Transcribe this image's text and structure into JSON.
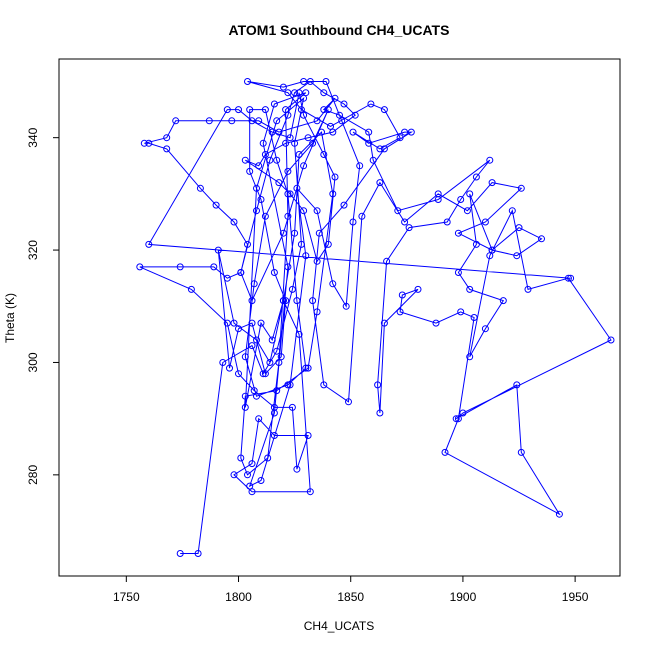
{
  "chart_data": {
    "type": "line",
    "title": "ATOM1 Southbound CH4_UCATS",
    "xlabel": "CH4_UCATS",
    "ylabel": "Theta (K)",
    "xlim": [
      1720,
      1970
    ],
    "ylim": [
      262,
      354
    ],
    "xticks": [
      "1750",
      "1800",
      "1850",
      "1900",
      "1950"
    ],
    "yticks": [
      "280",
      "300",
      "320",
      "340"
    ],
    "line_color": "#0000ff",
    "marker": "open-circle",
    "series": [
      {
        "points": [
          [
            1774,
            266
          ],
          [
            1782,
            266
          ],
          [
            1793,
            300
          ],
          [
            1806,
            303
          ],
          [
            1811,
            298
          ],
          [
            1817,
            302
          ],
          [
            1824,
            313
          ],
          [
            1828,
            321
          ],
          [
            1825,
            339
          ],
          [
            1829,
            347
          ],
          [
            1817,
            343
          ],
          [
            1808,
            331
          ],
          [
            1803,
            292
          ],
          [
            1810,
            307
          ],
          [
            1815,
            304
          ],
          [
            1820,
            311
          ],
          [
            1825,
            323
          ],
          [
            1827,
            337
          ],
          [
            1837,
            341
          ],
          [
            1842,
            330
          ],
          [
            1835,
            309
          ],
          [
            1831,
            299
          ],
          [
            1817,
            295
          ],
          [
            1803,
            294
          ],
          [
            1801,
            283
          ],
          [
            1804,
            280
          ],
          [
            1813,
            283
          ],
          [
            1818,
            300
          ],
          [
            1822,
            326
          ],
          [
            1821,
            345
          ],
          [
            1830,
            348
          ],
          [
            1816,
            346
          ],
          [
            1811,
            339
          ],
          [
            1822,
            317
          ],
          [
            1816,
            291
          ],
          [
            1805,
            278
          ],
          [
            1810,
            279
          ],
          [
            1823,
            296
          ],
          [
            1830,
            319
          ],
          [
            1826,
            331
          ],
          [
            1835,
            327
          ],
          [
            1842,
            314
          ],
          [
            1848,
            310
          ],
          [
            1851,
            325
          ],
          [
            1854,
            335
          ],
          [
            1846,
            343
          ],
          [
            1839,
            350
          ],
          [
            1829,
            350
          ],
          [
            1820,
            349
          ],
          [
            1804,
            350
          ],
          [
            1822,
            348
          ],
          [
            1828,
            345
          ],
          [
            1841,
            342
          ],
          [
            1859,
            346
          ],
          [
            1865,
            345
          ],
          [
            1872,
            340
          ],
          [
            1863,
            338
          ],
          [
            1851,
            341
          ],
          [
            1858,
            339
          ],
          [
            1874,
            341
          ],
          [
            1877,
            341
          ],
          [
            1865,
            338
          ],
          [
            1847,
            328
          ],
          [
            1836,
            323
          ],
          [
            1833,
            311
          ],
          [
            1838,
            296
          ],
          [
            1849,
            293
          ],
          [
            1855,
            326
          ],
          [
            1863,
            332
          ],
          [
            1874,
            325
          ],
          [
            1889,
            330
          ],
          [
            1902,
            327
          ],
          [
            1913,
            332
          ],
          [
            1926,
            331
          ],
          [
            1910,
            325
          ],
          [
            1898,
            323
          ],
          [
            1913,
            320
          ],
          [
            1924,
            319
          ],
          [
            1935,
            322
          ],
          [
            1925,
            324
          ],
          [
            1913,
            320
          ],
          [
            1903,
            330
          ],
          [
            1906,
            321
          ],
          [
            1898,
            316
          ],
          [
            1903,
            313
          ],
          [
            1918,
            311
          ],
          [
            1910,
            306
          ],
          [
            1903,
            301
          ],
          [
            1912,
            319
          ],
          [
            1922,
            327
          ],
          [
            1929,
            313
          ],
          [
            1947,
            315
          ],
          [
            1966,
            304
          ],
          [
            1900,
            291
          ],
          [
            1897,
            290
          ],
          [
            1924,
            296
          ],
          [
            1926,
            284
          ],
          [
            1943,
            273
          ],
          [
            1892,
            284
          ],
          [
            1898,
            290
          ],
          [
            1905,
            308
          ],
          [
            1899,
            309
          ],
          [
            1888,
            307
          ],
          [
            1872,
            309
          ],
          [
            1873,
            312
          ],
          [
            1880,
            313
          ],
          [
            1865,
            307
          ],
          [
            1863,
            291
          ],
          [
            1862,
            296
          ],
          [
            1866,
            318
          ],
          [
            1876,
            324
          ],
          [
            1893,
            325
          ],
          [
            1899,
            329
          ],
          [
            1906,
            333
          ],
          [
            1912,
            336
          ],
          [
            1889,
            329
          ],
          [
            1871,
            327
          ],
          [
            1860,
            336
          ],
          [
            1858,
            341
          ],
          [
            1845,
            344
          ],
          [
            1838,
            345
          ],
          [
            1843,
            347
          ],
          [
            1835,
            343
          ],
          [
            1818,
            341
          ],
          [
            1809,
            343
          ],
          [
            1797,
            343
          ],
          [
            1787,
            343
          ],
          [
            1772,
            343
          ],
          [
            1768,
            340
          ],
          [
            1758,
            339
          ],
          [
            1760,
            339
          ],
          [
            1768,
            338
          ],
          [
            1783,
            331
          ],
          [
            1790,
            328
          ],
          [
            1798,
            325
          ],
          [
            1804,
            321
          ],
          [
            1801,
            316
          ],
          [
            1795,
            315
          ],
          [
            1789,
            317
          ],
          [
            1774,
            317
          ],
          [
            1756,
            317
          ],
          [
            1779,
            313
          ],
          [
            1795,
            307
          ],
          [
            1800,
            298
          ],
          [
            1807,
            295
          ],
          [
            1816,
            292
          ],
          [
            1824,
            292
          ],
          [
            1826,
            281
          ],
          [
            1831,
            287
          ],
          [
            1816,
            287
          ],
          [
            1809,
            290
          ],
          [
            1806,
            282
          ],
          [
            1798,
            280
          ],
          [
            1806,
            277
          ],
          [
            1832,
            277
          ],
          [
            1827,
            305
          ],
          [
            1820,
            311
          ],
          [
            1814,
            300
          ],
          [
            1808,
            304
          ],
          [
            1798,
            307
          ],
          [
            1791,
            320
          ],
          [
            1796,
            299
          ],
          [
            1800,
            306
          ],
          [
            1806,
            307
          ],
          [
            1812,
            298
          ],
          [
            1819,
            301
          ],
          [
            1821,
            311
          ],
          [
            1816,
            316
          ],
          [
            1810,
            329
          ],
          [
            1805,
            334
          ],
          [
            1805,
            345
          ],
          [
            1812,
            345
          ],
          [
            1817,
            336
          ],
          [
            1822,
            330
          ],
          [
            1826,
            311
          ],
          [
            1830,
            299
          ],
          [
            1822,
            296
          ],
          [
            1808,
            294
          ],
          [
            1803,
            301
          ],
          [
            1807,
            314
          ],
          [
            1812,
            326
          ],
          [
            1822,
            334
          ],
          [
            1833,
            339
          ],
          [
            1840,
            345
          ],
          [
            1829,
            335
          ],
          [
            1820,
            323
          ],
          [
            1806,
            311
          ],
          [
            1801,
            316
          ],
          [
            1808,
            327
          ],
          [
            1814,
            336
          ],
          [
            1822,
            344
          ],
          [
            1825,
            348
          ],
          [
            1832,
            350
          ],
          [
            1838,
            348
          ],
          [
            1847,
            346
          ],
          [
            1852,
            344
          ],
          [
            1842,
            341
          ],
          [
            1831,
            340
          ],
          [
            1821,
            339
          ],
          [
            1812,
            337
          ],
          [
            1809,
            335
          ],
          [
            1803,
            336
          ],
          [
            1818,
            332
          ],
          [
            1823,
            330
          ],
          [
            1829,
            327
          ],
          [
            1835,
            318
          ],
          [
            1840,
            321
          ],
          [
            1843,
            333
          ],
          [
            1838,
            337
          ],
          [
            1829,
            344
          ],
          [
            1827,
            348
          ],
          [
            1823,
            340
          ],
          [
            1815,
            341
          ],
          [
            1806,
            343
          ],
          [
            1800,
            345
          ],
          [
            1795,
            345
          ],
          [
            1760,
            321
          ],
          [
            1948,
            315
          ]
        ]
      }
    ]
  }
}
